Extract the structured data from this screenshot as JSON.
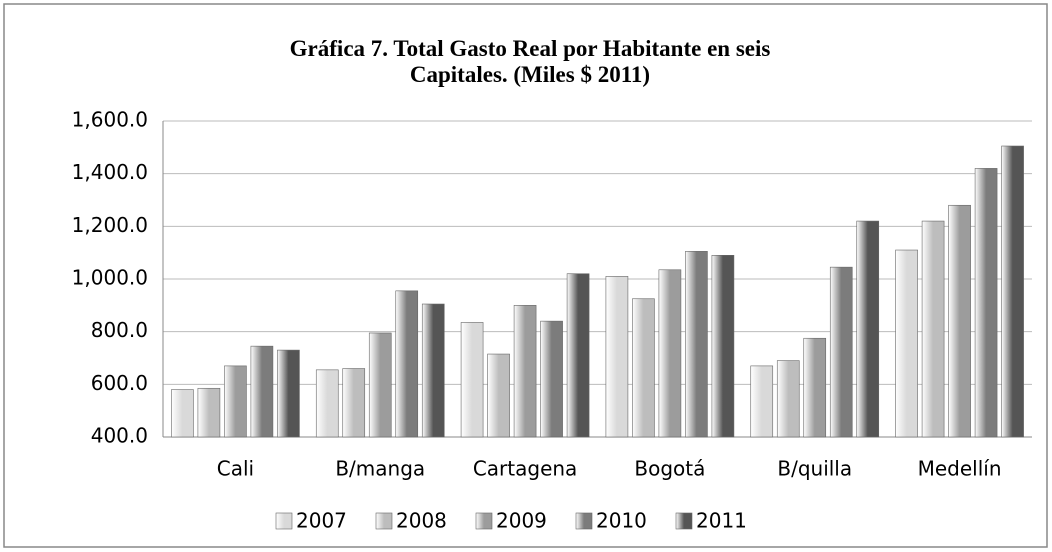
{
  "chart_data": {
    "type": "bar",
    "title": "Gráfica 7. Total Gasto Real por Habitante en seis Capitales.  (Miles $ 2011)",
    "categories": [
      "Cali",
      "B/manga",
      "Cartagena",
      "Bogotá",
      "B/quilla",
      "Medellín"
    ],
    "series": [
      {
        "name": "2007",
        "color": "#d9d9d9",
        "values": [
          580,
          655,
          835,
          1010,
          670,
          1110
        ]
      },
      {
        "name": "2008",
        "color": "#bdbdbd",
        "values": [
          585,
          660,
          715,
          925,
          690,
          1220
        ]
      },
      {
        "name": "2009",
        "color": "#9c9c9c",
        "values": [
          670,
          795,
          900,
          1035,
          775,
          1280
        ]
      },
      {
        "name": "2010",
        "color": "#7c7c7c",
        "values": [
          745,
          955,
          840,
          1105,
          1045,
          1420
        ]
      },
      {
        "name": "2011",
        "color": "#555555",
        "values": [
          730,
          905,
          1020,
          1090,
          1220,
          1505
        ]
      }
    ],
    "ylim": [
      400,
      1600
    ],
    "yticks": [
      {
        "value": 400,
        "label": "400.0"
      },
      {
        "value": 600,
        "label": "600.0"
      },
      {
        "value": 800,
        "label": "800.0"
      },
      {
        "value": 1000,
        "label": "1,000.0"
      },
      {
        "value": 1200,
        "label": "1,200.0"
      },
      {
        "value": 1400,
        "label": "1,400.0"
      },
      {
        "value": 1600,
        "label": "1,600.0"
      }
    ],
    "grid": true,
    "legend": "bottom"
  }
}
